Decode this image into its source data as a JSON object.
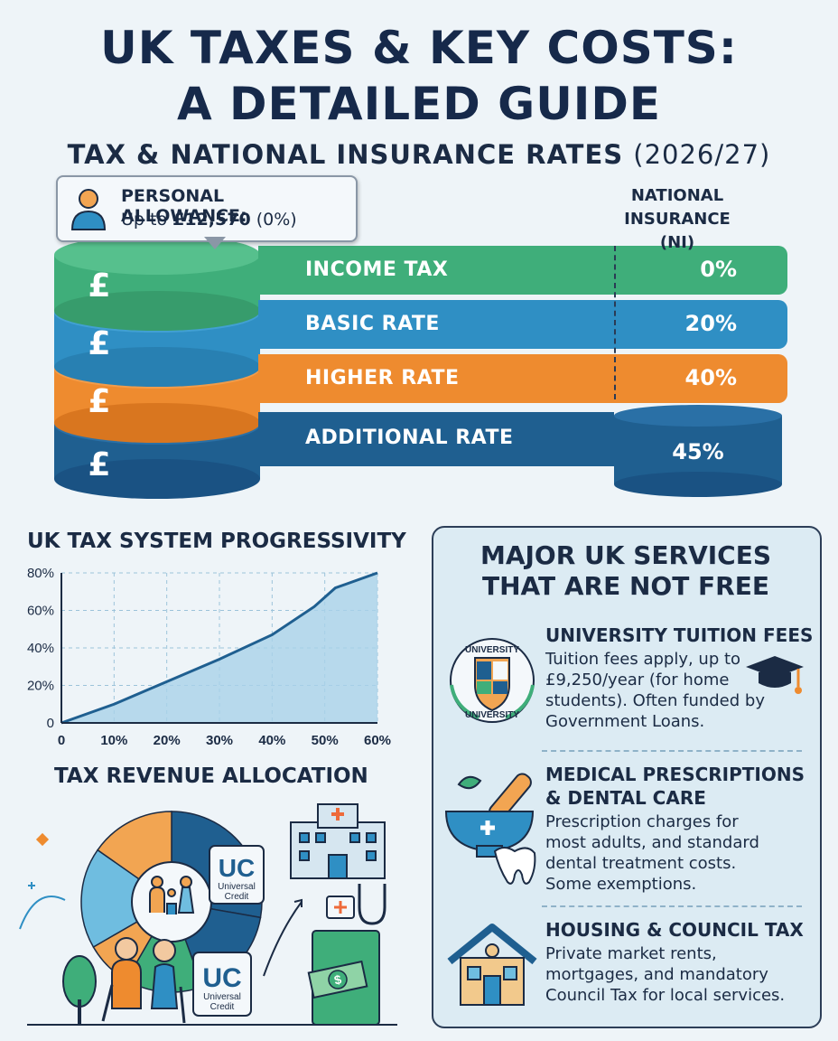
{
  "header": {
    "title_line1": "UK TAXES & KEY COSTS:",
    "title_line2": "A DETAILED GUIDE",
    "subtitle": "TAX & NATIONAL INSURANCE RATES",
    "subtitle_year": "(2026/27)"
  },
  "allowance": {
    "label": "PERSONAL ALLOWANCE:",
    "value_prefix": "Up to ",
    "value_amount": "£12,570",
    "value_suffix": " (0%)"
  },
  "ni_header": {
    "line1": "NATIONAL",
    "line2": "INSURANCE (NI)"
  },
  "bands": [
    {
      "name": "INCOME TAX",
      "rate": "0%",
      "color": "#3fae7a"
    },
    {
      "name": "BASIC RATE",
      "rate": "20%",
      "color": "#2f8fc4"
    },
    {
      "name": "HIGHER RATE",
      "rate": "40%",
      "color": "#ee8b2f"
    },
    {
      "name": "ADDITIONAL RATE",
      "rate": "45%",
      "color": "#1f5f90"
    }
  ],
  "currency_symbol": "£",
  "progressivity": {
    "title": "UK TAX SYSTEM PROGRESSIVITY"
  },
  "chart_data": {
    "type": "area",
    "title": "UK TAX SYSTEM PROGRESSIVITY",
    "x": [
      0,
      10,
      20,
      30,
      40,
      50,
      60
    ],
    "x_tick_labels": [
      "0",
      "10%",
      "20%",
      "30%",
      "40%",
      "50%",
      "60%"
    ],
    "y_tick_labels": [
      "0",
      "20%",
      "40%",
      "60%",
      "80%"
    ],
    "y_ticks": [
      0,
      20,
      40,
      60,
      80
    ],
    "series": [
      {
        "values": [
          0,
          10,
          22,
          34,
          47,
          62,
          72,
          80
        ],
        "x": [
          0,
          10,
          20,
          30,
          40,
          48,
          52,
          60
        ]
      }
    ],
    "xlim": [
      0,
      60
    ],
    "ylim": [
      0,
      80
    ],
    "grid": true
  },
  "allocation": {
    "title": "TAX REVENUE ALLOCATION",
    "uc_big": "UC",
    "uc_small_1": "Universal",
    "uc_small_2": "Credit",
    "cash_symbol": "$",
    "pie_colors": [
      "#1f5f90",
      "#2f8fc4",
      "#6fbde0",
      "#f2a552",
      "#3fae7a"
    ]
  },
  "services": {
    "title_line1": "MAJOR UK SERVICES",
    "title_line2": "THAT ARE NOT FREE",
    "items": [
      {
        "title": "UNIVERSITY TUITION FEES",
        "desc": [
          "Tuition fees apply, up to",
          "£9,250/year (for home",
          "students). Often funded by",
          "Government Loans."
        ],
        "icon": "university-crest-icon"
      },
      {
        "title": "MEDICAL PRESCRIPTIONS",
        "title2": "& DENTAL CARE",
        "desc": [
          "Prescription charges for",
          "most adults, and standard",
          "dental treatment costs.",
          "Some exemptions."
        ],
        "icon": "mortar-pestle-icon"
      },
      {
        "title": "HOUSING & COUNCIL TAX",
        "desc": [
          "Private market rents,",
          "mortgages, and mandatory",
          "Council Tax for local services."
        ],
        "icon": "house-icon"
      }
    ],
    "crest_text_top": "UNIVERSITY",
    "crest_text_bottom": "UNIVERSITY"
  }
}
